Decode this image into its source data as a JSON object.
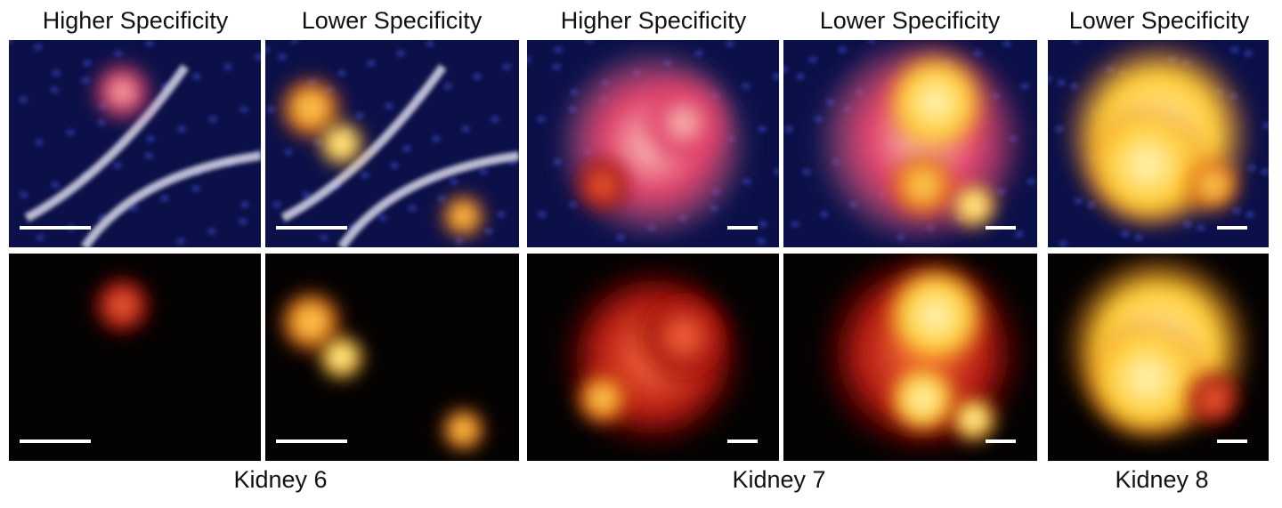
{
  "columns": [
    {
      "header": "Higher Specificity"
    },
    {
      "header": "Lower Specificity"
    },
    {
      "header": "Higher Specificity"
    },
    {
      "header": "Lower Specificity"
    },
    {
      "header": "Lower Specificity"
    }
  ],
  "groups": [
    {
      "label": "Kidney 6"
    },
    {
      "label": "Kidney 7"
    },
    {
      "label": "Kidney 8"
    }
  ]
}
